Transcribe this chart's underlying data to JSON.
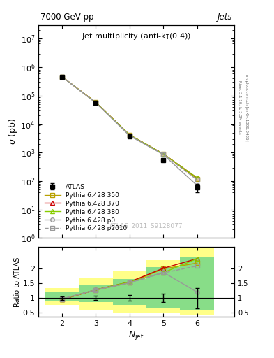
{
  "title_top": "7000 GeV pp",
  "title_right": "Jets",
  "main_title": "Jet multiplicity (anti-k$_{T}$(0.4))",
  "xlabel": "$N_{\\rm jet}$",
  "ylabel_main": "$\\sigma$ (pb)",
  "ylabel_ratio": "Ratio to ATLAS",
  "watermark": "ATLAS_2011_S9128077",
  "right_label1": "Rivet 3.1.10, ≥ 3.3M events",
  "right_label2": "mcplots.cern.ch [arXiv:1306.3436]",
  "njets": [
    2,
    3,
    4,
    5,
    6
  ],
  "atlas_y": [
    450000,
    55000,
    3800,
    550,
    60
  ],
  "atlas_yerr": [
    10000,
    3000,
    200,
    60,
    20
  ],
  "p350_y": [
    460000,
    58000,
    4100,
    900,
    120
  ],
  "p370_y": [
    460000,
    58000,
    4200,
    900,
    130
  ],
  "p380_y": [
    460000,
    58000,
    4200,
    900,
    130
  ],
  "p0_y": [
    460000,
    56000,
    3900,
    850,
    70
  ],
  "p2010_y": [
    460000,
    57000,
    4050,
    880,
    110
  ],
  "ratio_350": [
    0.95,
    1.27,
    1.52,
    2.0,
    2.2
  ],
  "ratio_370": [
    0.95,
    1.28,
    1.55,
    2.02,
    2.35
  ],
  "ratio_380": [
    0.96,
    1.28,
    1.55,
    1.87,
    2.35
  ],
  "ratio_p0": [
    0.97,
    1.28,
    1.52,
    1.88,
    1.2
  ],
  "ratio_p2010": [
    0.96,
    1.27,
    1.52,
    1.86,
    2.1
  ],
  "ratio_err_atlas": [
    0.06,
    0.08,
    0.1,
    0.15,
    0.35
  ],
  "green_band_lo": [
    0.9,
    0.85,
    0.75,
    0.65,
    0.6
  ],
  "green_band_hi": [
    1.2,
    1.45,
    1.65,
    2.05,
    2.4
  ],
  "yellow_band_lo": [
    0.75,
    0.6,
    0.5,
    0.5,
    0.4
  ],
  "yellow_band_hi": [
    1.35,
    1.7,
    1.95,
    2.3,
    2.7
  ],
  "color_350": "#b8a000",
  "color_370": "#cc0000",
  "color_380": "#88cc00",
  "color_p0": "#999999",
  "color_p2010": "#999999",
  "color_atlas": "#000000",
  "color_yellow": "#ffff88",
  "color_green": "#88dd88",
  "ylim_main": [
    1.0,
    30000000.0
  ],
  "ylim_ratio": [
    0.35,
    2.75
  ],
  "fig_width": 3.93,
  "fig_height": 5.12
}
